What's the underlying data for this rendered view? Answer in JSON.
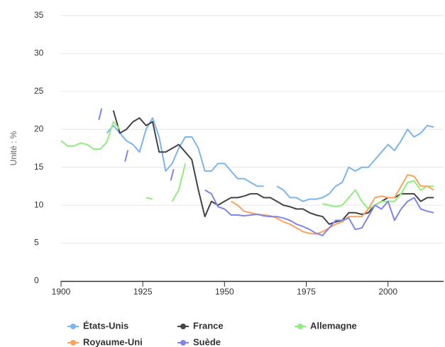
{
  "chart_data": {
    "type": "line",
    "y_label": "Unité : %",
    "x": [
      1900,
      1902,
      1904,
      1906,
      1908,
      1910,
      1912,
      1914,
      1916,
      1918,
      1920,
      1922,
      1924,
      1926,
      1928,
      1930,
      1932,
      1934,
      1936,
      1938,
      1940,
      1942,
      1944,
      1946,
      1948,
      1950,
      1952,
      1954,
      1956,
      1958,
      1960,
      1962,
      1964,
      1966,
      1968,
      1970,
      1972,
      1974,
      1976,
      1978,
      1980,
      1982,
      1984,
      1986,
      1988,
      1990,
      1992,
      1994,
      1996,
      1998,
      2000,
      2002,
      2004,
      2006,
      2008,
      2010,
      2012,
      2014
    ],
    "series": [
      {
        "name": "États-Unis",
        "color": "#7cb5ec",
        "values": [
          null,
          null,
          null,
          null,
          null,
          null,
          null,
          19.5,
          20.5,
          19.5,
          18.5,
          18,
          17,
          20,
          21.5,
          19,
          14.5,
          15.5,
          17.5,
          19,
          19,
          17.5,
          14.5,
          14.5,
          15.5,
          15.5,
          14.5,
          13.5,
          13.5,
          13,
          12.5,
          12.5,
          null,
          12.5,
          12,
          11,
          11,
          10.5,
          10.8,
          10.8,
          11,
          11.5,
          12.5,
          13,
          15,
          14.5,
          15,
          15,
          16,
          17,
          18,
          17.2,
          18.5,
          20,
          19,
          19.5,
          20.5,
          20.3
        ]
      },
      {
        "name": "France",
        "color": "#434348",
        "values": [
          null,
          null,
          null,
          null,
          null,
          null,
          null,
          null,
          22.5,
          19.5,
          20,
          21,
          21.5,
          20.5,
          21,
          17,
          17,
          17.5,
          18,
          17,
          16,
          12,
          8.5,
          10.5,
          10,
          10.5,
          11,
          11,
          11.2,
          11.5,
          11.5,
          11,
          11,
          10.5,
          10,
          9.8,
          9.5,
          9.5,
          9,
          8.7,
          8.5,
          7.5,
          7.8,
          8,
          9,
          9,
          8.8,
          9,
          10,
          10.5,
          11,
          11,
          11.5,
          11.5,
          11.5,
          10.5,
          11,
          11
        ]
      },
      {
        "name": "Allemagne",
        "color": "#90ed7d",
        "values": [
          18.5,
          17.8,
          17.8,
          18.2,
          18,
          17.4,
          17.4,
          18.3,
          21,
          20,
          null,
          null,
          null,
          11,
          10.8,
          null,
          null,
          10.5,
          12,
          15.5,
          null,
          null,
          null,
          null,
          null,
          null,
          null,
          null,
          null,
          null,
          null,
          null,
          null,
          null,
          null,
          null,
          null,
          null,
          null,
          null,
          10.2,
          10,
          9.8,
          10,
          11,
          12,
          10.5,
          9.5,
          10,
          10.5,
          10.5,
          10.5,
          11.5,
          13,
          13.2,
          12,
          12.5,
          12.5
        ]
      },
      {
        "name": "Royaume-Uni",
        "color": "#f7a35c",
        "values": [
          null,
          null,
          null,
          null,
          null,
          null,
          null,
          null,
          null,
          null,
          null,
          null,
          null,
          null,
          null,
          null,
          null,
          null,
          null,
          null,
          null,
          null,
          null,
          null,
          null,
          null,
          10.5,
          10,
          9.2,
          9,
          8.8,
          8.7,
          8.6,
          8.3,
          7.8,
          7.5,
          7,
          6.5,
          6.3,
          6.2,
          6.5,
          7,
          7.5,
          7.8,
          8.5,
          8.5,
          8.5,
          9.5,
          11,
          11.2,
          11,
          11,
          12.5,
          14,
          13.8,
          12.5,
          12.5,
          12
        ]
      },
      {
        "name": "Suède",
        "color": "#8085e9",
        "values": [
          null,
          null,
          null,
          null,
          null,
          null,
          22,
          null,
          null,
          null,
          16.5,
          null,
          null,
          null,
          null,
          null,
          null,
          14,
          null,
          null,
          null,
          null,
          12,
          11.5,
          9.8,
          9.5,
          8.7,
          8.7,
          8.6,
          8.7,
          8.8,
          8.6,
          8.5,
          8.5,
          8.3,
          8,
          7.5,
          7.2,
          6.8,
          6.3,
          6,
          7,
          8,
          8,
          8.3,
          6.8,
          7,
          8.5,
          10,
          9.5,
          10.5,
          8,
          9.5,
          10.5,
          11,
          9.5,
          9.2,
          9
        ]
      }
    ],
    "xlim": [
      1900,
      2017
    ],
    "xticks": [
      1900,
      1925,
      1950,
      1975,
      2000
    ],
    "ylim": [
      0,
      35
    ],
    "yticks": [
      0,
      5,
      10,
      15,
      20,
      25,
      30,
      35
    ],
    "grid": true,
    "legend": "bottom"
  }
}
